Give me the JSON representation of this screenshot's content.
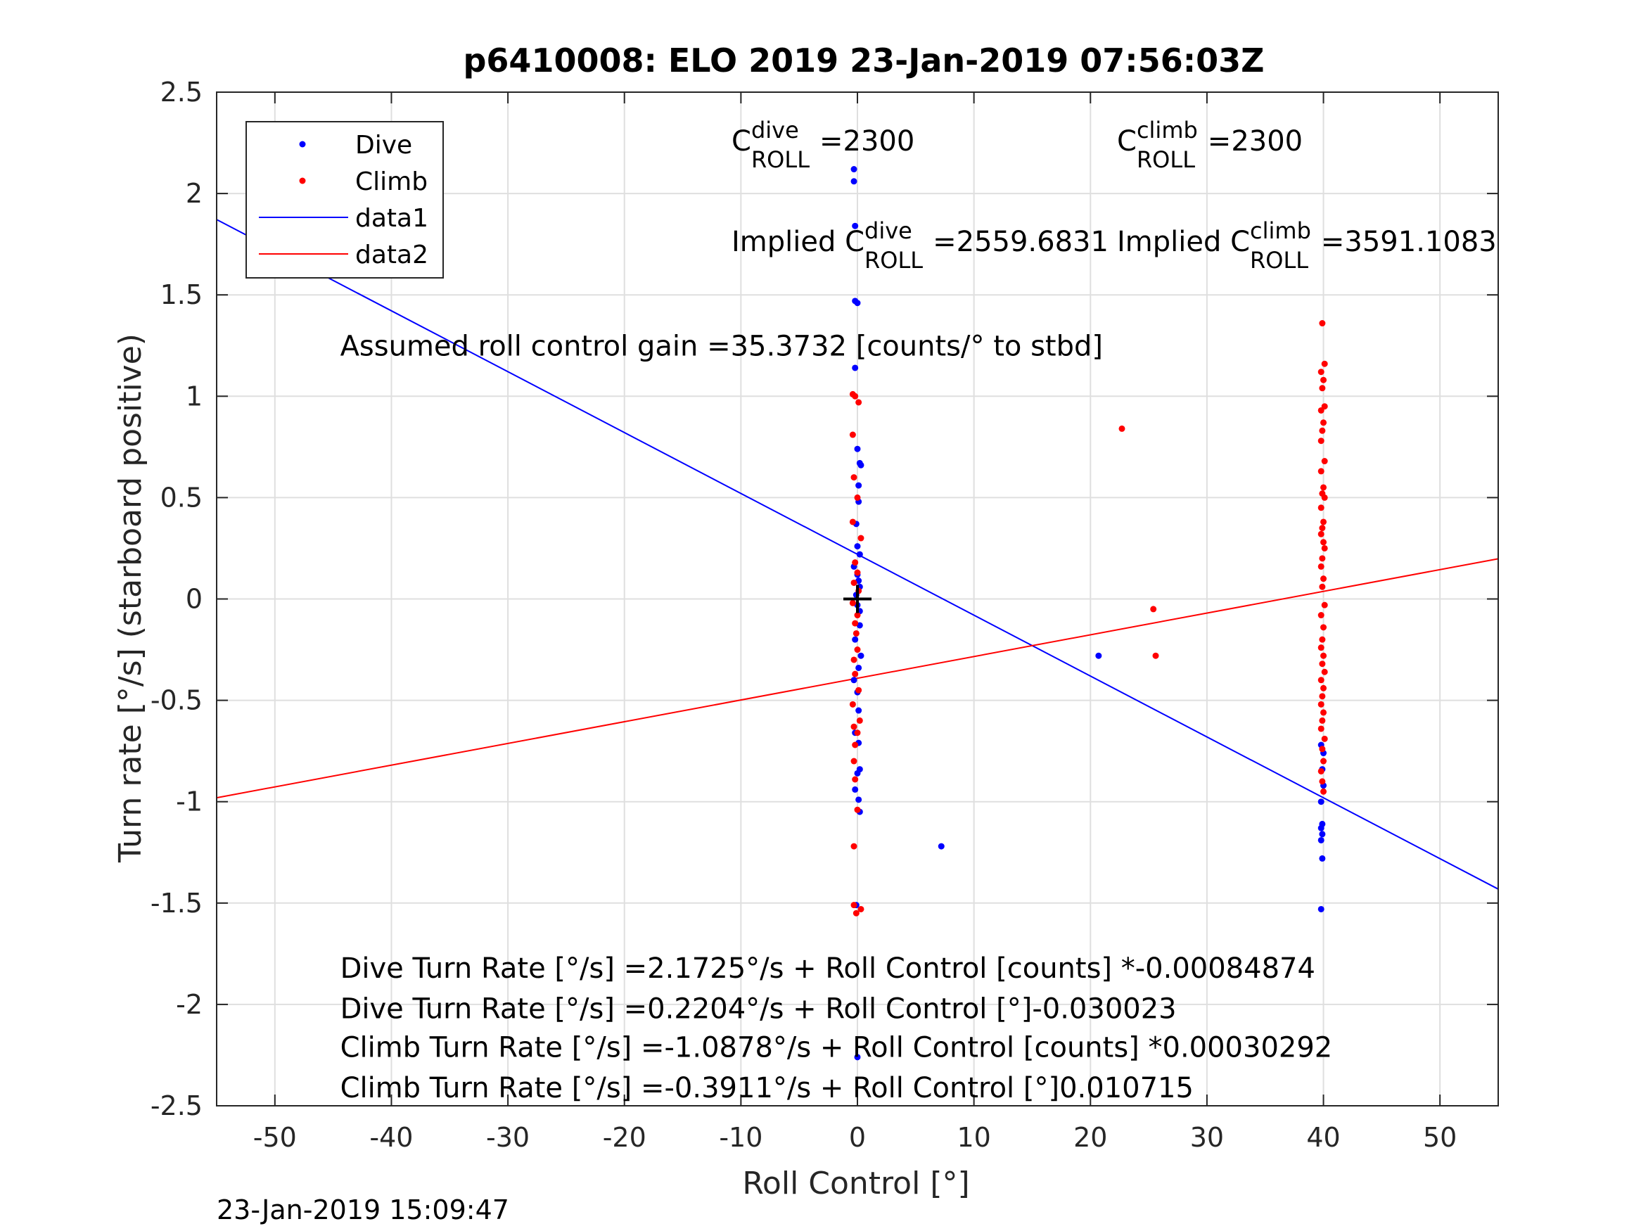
{
  "chart_data": {
    "type": "scatter",
    "title": "p6410008: ELO 2019 23-Jan-2019 07:56:03Z",
    "xlabel": "Roll Control [°]",
    "ylabel": "Turn rate [°/s] (starboard positive)",
    "xlim": [
      -55,
      55
    ],
    "ylim": [
      -2.5,
      2.5
    ],
    "xticks": [
      -50,
      -40,
      -30,
      -20,
      -10,
      0,
      10,
      20,
      30,
      40,
      50
    ],
    "xtick_labels": [
      "-50",
      "-40",
      "-30",
      "-20",
      "-10",
      "0",
      "10",
      "20",
      "30",
      "40",
      "50"
    ],
    "yticks": [
      2.5,
      2,
      1.5,
      1,
      0.5,
      0,
      -0.5,
      -1,
      -1.5,
      -2,
      -2.5
    ],
    "ytick_labels": [
      "2.5",
      "2",
      "1.5",
      "1",
      "0.5",
      "0",
      "-0.5",
      "-1",
      "-1.5",
      "-2",
      "-2.5"
    ],
    "grid": true,
    "legend_position": "top-left",
    "series": [
      {
        "name": "Dive",
        "kind": "points",
        "color": "#0000ff",
        "x": [
          -0.3,
          -0.3,
          -0.2,
          -0.2,
          0,
          -0.2,
          0,
          0.2,
          0.3,
          0.1,
          0.1,
          -0.1,
          0,
          0.2,
          -0.3,
          0,
          0.1,
          0.2,
          -0.1,
          0,
          0.2,
          0.2,
          -0.2,
          0.3,
          0.1,
          -0.3,
          0,
          0.1,
          -0.2,
          0.1,
          0.2,
          0,
          -0.2,
          0.1,
          0.2,
          7.2,
          20.7,
          39.8,
          40.0,
          39.9,
          40.0,
          39.8,
          39.9,
          39.8,
          39.9,
          39.8,
          39.8,
          39.9,
          -0.1,
          0
        ],
        "y": [
          2.12,
          2.06,
          1.84,
          1.47,
          1.46,
          1.14,
          0.74,
          0.67,
          0.66,
          0.56,
          0.48,
          0.37,
          0.26,
          0.22,
          0.16,
          0.12,
          0.09,
          0.06,
          0.02,
          -0.03,
          -0.06,
          -0.13,
          -0.2,
          -0.28,
          -0.34,
          -0.4,
          -0.46,
          -0.55,
          -0.66,
          -0.71,
          -0.84,
          -0.86,
          -0.94,
          -0.99,
          -1.05,
          -1.22,
          -0.28,
          -0.72,
          -0.76,
          -0.84,
          -0.92,
          -1.0,
          -1.11,
          -1.13,
          -1.16,
          -1.19,
          -1.53,
          -1.28,
          -1.51,
          -2.26
        ],
        "marker": "dot"
      },
      {
        "name": "Climb",
        "kind": "points",
        "color": "#ff0000",
        "x": [
          -0.4,
          -0.2,
          0.1,
          -0.4,
          -0.3,
          0,
          -0.4,
          0.3,
          -0.2,
          0,
          -0.3,
          0.1,
          -0.4,
          0,
          -0.2,
          -0.1,
          0,
          -0.3,
          -0.2,
          0.1,
          -0.4,
          0.2,
          -0.3,
          0,
          -0.2,
          -0.3,
          -0.2,
          0,
          -0.3,
          -0.3,
          0.3,
          -0.1,
          22.7,
          25.4,
          25.6,
          39.9,
          40.1,
          39.8,
          40.0,
          39.9,
          40.1,
          39.8,
          40.0,
          39.9,
          39.8,
          40.1,
          39.8,
          40.0,
          39.9,
          40.1,
          39.8,
          40.0,
          39.9,
          39.8,
          40.0,
          40.1,
          39.9,
          39.8,
          40.0,
          39.9,
          40.1,
          39.8,
          40.0,
          39.9,
          39.8,
          40.0,
          39.9,
          40.1,
          39.8,
          40.0,
          39.9,
          39.8,
          40.0,
          39.9,
          39.8,
          40.1,
          39.9,
          40.0,
          39.8,
          39.9,
          40.0
        ],
        "y": [
          1.01,
          1.0,
          0.97,
          0.81,
          0.6,
          0.5,
          0.38,
          0.3,
          0.18,
          0.13,
          0.08,
          0.04,
          -0.02,
          -0.08,
          -0.12,
          -0.17,
          -0.25,
          -0.3,
          -0.37,
          -0.45,
          -0.52,
          -0.6,
          -0.63,
          -0.66,
          -0.72,
          -0.8,
          -0.89,
          -1.04,
          -1.22,
          -1.51,
          -1.53,
          -1.55,
          0.84,
          -0.05,
          -0.28,
          1.36,
          1.16,
          1.12,
          1.08,
          1.04,
          0.95,
          0.93,
          0.87,
          0.83,
          0.78,
          0.68,
          0.63,
          0.55,
          0.52,
          0.5,
          0.45,
          0.38,
          0.35,
          0.32,
          0.28,
          0.25,
          0.2,
          0.16,
          0.1,
          0.06,
          -0.03,
          -0.08,
          -0.14,
          -0.2,
          -0.24,
          -0.28,
          -0.32,
          -0.36,
          -0.4,
          -0.44,
          -0.48,
          -0.52,
          -0.56,
          -0.6,
          -0.64,
          -0.69,
          -0.74,
          -0.8,
          -0.85,
          -0.9,
          -0.95
        ],
        "marker": "dot"
      },
      {
        "name": "data1",
        "kind": "line",
        "color": "#0000ff",
        "x": [
          -55,
          55
        ],
        "y": [
          1.8717,
          -1.4311
        ]
      },
      {
        "name": "data2",
        "kind": "line",
        "color": "#ff0000",
        "x": [
          -55,
          55
        ],
        "y": [
          -0.9805,
          0.1983
        ]
      }
    ],
    "annotations": [
      {
        "text": "Assumed roll control gain =35.3732 [counts/° to stbd]",
        "x": -44.4,
        "y": 1.25
      },
      {
        "text": "Dive Turn Rate [°/s] =2.1725°/s + Roll Control [counts] *-0.00084874",
        "x": -44.4,
        "y": -1.82
      },
      {
        "text": "Dive Turn Rate [°/s] =0.2204°/s + Roll Control [°]-0.030023",
        "x": -44.4,
        "y": -2.02
      },
      {
        "text": "Climb Turn Rate [°/s] =-1.0878°/s + Roll Control [counts] *0.00030292",
        "x": -44.4,
        "y": -2.21
      },
      {
        "text": "Climb Turn Rate [°/s] =-0.3911°/s + Roll Control [°]0.010715",
        "x": -44.4,
        "y": -2.41
      }
    ],
    "c_roll_labels": {
      "dive_value": "=2300",
      "climb_value": "=2300",
      "implied_prefix": "Implied C",
      "c_prefix": "C",
      "sub": "ROLL",
      "sup_dive": "dive",
      "sup_climb": "climb",
      "implied_dive_value": "=2559.6831",
      "implied_climb_value": "=3591.1083"
    },
    "marker_plus": {
      "x": 0,
      "y": 0,
      "color": "#000000"
    },
    "footer_timestamp": "23-Jan-2019 15:09:47"
  }
}
